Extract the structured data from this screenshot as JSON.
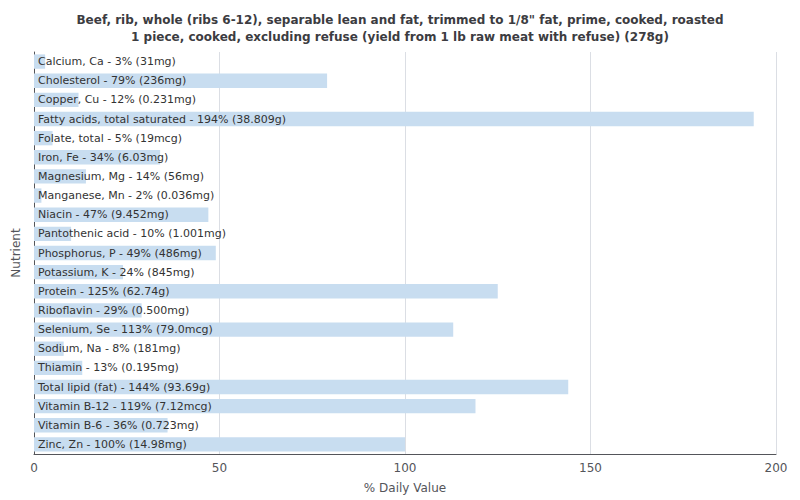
{
  "chart_data": {
    "type": "bar",
    "orientation": "horizontal",
    "title": "Beef, rib, whole (ribs 6-12), separable lean and fat, trimmed to 1/8\" fat, prime, cooked, roasted\n1 piece, cooked, excluding refuse (yield from 1 lb raw meat with refuse) (278g)",
    "xlabel": "% Daily Value",
    "ylabel": "Nutrient",
    "categories": [
      "Calcium, Ca - 3% (31mg)",
      "Cholesterol - 79% (236mg)",
      "Copper, Cu - 12% (0.231mg)",
      "Fatty acids, total saturated - 194% (38.809g)",
      "Folate, total - 5% (19mcg)",
      "Iron, Fe - 34% (6.03mg)",
      "Magnesium, Mg - 14% (56mg)",
      "Manganese, Mn - 2% (0.036mg)",
      "Niacin - 47% (9.452mg)",
      "Pantothenic acid - 10% (1.001mg)",
      "Phosphorus, P - 49% (486mg)",
      "Potassium, K - 24% (845mg)",
      "Protein - 125% (62.74g)",
      "Riboflavin - 29% (0.500mg)",
      "Selenium, Se - 113% (79.0mcg)",
      "Sodium, Na - 8% (181mg)",
      "Thiamin - 13% (0.195mg)",
      "Total lipid (fat) - 144% (93.69g)",
      "Vitamin B-12 - 119% (7.12mcg)",
      "Vitamin B-6 - 36% (0.723mg)",
      "Zinc, Zn - 100% (14.98mg)"
    ],
    "values": [
      3,
      79,
      12,
      194,
      5,
      34,
      14,
      2,
      47,
      10,
      49,
      24,
      125,
      29,
      113,
      8,
      13,
      144,
      119,
      36,
      100
    ],
    "color": "#c8ddf0",
    "xlim": [
      0,
      200
    ],
    "xticks": [
      0,
      50,
      100,
      150,
      200
    ],
    "grid": true,
    "tick_labels": "x"
  }
}
